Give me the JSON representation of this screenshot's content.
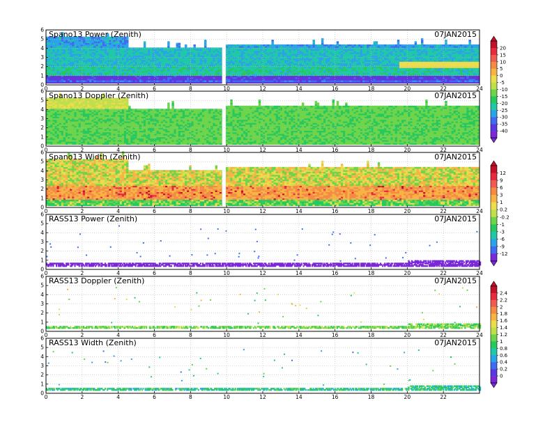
{
  "chart_data": [
    {
      "type": "heatmap",
      "title": "Spano13 Power (Zenith)",
      "date": "07JAN2015",
      "xlim": [
        0,
        24
      ],
      "ylim": [
        0,
        6
      ],
      "xticks": [
        "0",
        "2",
        "4",
        "6",
        "8",
        "10",
        "12",
        "14",
        "16",
        "18",
        "20",
        "22",
        "24"
      ],
      "yticks": [
        "0",
        "1",
        "2",
        "3",
        "4",
        "5",
        "6"
      ],
      "grid": true,
      "colorbar": "power",
      "field": "power",
      "top_profile": [
        [
          0,
          5.2
        ],
        [
          4.5,
          5.2
        ],
        [
          4.5,
          4.0
        ],
        [
          9.8,
          4.0
        ],
        [
          9.8,
          4.3
        ],
        [
          24,
          4.3
        ]
      ],
      "approx_levels": [
        [
          0,
          0.5,
          -32
        ],
        [
          0.5,
          1.0,
          -38
        ],
        [
          1.0,
          2.0,
          -22
        ],
        [
          2.0,
          4.0,
          -24
        ],
        [
          4.0,
          6.0,
          -28
        ]
      ]
    },
    {
      "type": "heatmap",
      "title": "Spano13 Doppler (Zenith)",
      "date": "07JAN2015",
      "xlim": [
        0,
        24
      ],
      "ylim": [
        0,
        6
      ],
      "xticks": [
        "0",
        "2",
        "4",
        "6",
        "8",
        "10",
        "12",
        "14",
        "16",
        "18",
        "20",
        "22",
        "24"
      ],
      "yticks": [
        "0",
        "1",
        "2",
        "3",
        "4",
        "5",
        "6"
      ],
      "grid": true,
      "colorbar": "power",
      "field": "doppler",
      "top_profile": [
        [
          0,
          5.2
        ],
        [
          4.5,
          5.2
        ],
        [
          4.5,
          4.0
        ],
        [
          9.8,
          4.0
        ],
        [
          9.8,
          4.3
        ],
        [
          24,
          4.3
        ]
      ],
      "approx_levels": [
        [
          0,
          6,
          -14
        ]
      ]
    },
    {
      "type": "heatmap",
      "title": "Spano13 Width (Zenith)",
      "date": "07JAN2015",
      "xlim": [
        0,
        24
      ],
      "ylim": [
        0,
        6
      ],
      "xticks": [
        "0",
        "2",
        "4",
        "6",
        "8",
        "10",
        "12",
        "14",
        "16",
        "18",
        "20",
        "22",
        "24"
      ],
      "yticks": [
        "0",
        "1",
        "2",
        "3",
        "4",
        "5",
        "6"
      ],
      "grid": true,
      "colorbar": "width",
      "field": "width",
      "top_profile": [
        [
          0,
          5.2
        ],
        [
          4.5,
          5.2
        ],
        [
          4.5,
          4.0
        ],
        [
          9.8,
          4.0
        ],
        [
          9.8,
          4.3
        ],
        [
          24,
          4.3
        ]
      ],
      "approx_levels": [
        [
          0,
          0.8,
          -1
        ],
        [
          0.8,
          2.3,
          3
        ],
        [
          2.3,
          6,
          0.5
        ]
      ]
    },
    {
      "type": "scatter",
      "title": "RASS13 Power (Zenith)",
      "date": "07JAN2015",
      "xlim": [
        0,
        24
      ],
      "ylim": [
        0,
        6
      ],
      "xticks": [
        "0",
        "2",
        "4",
        "6",
        "8",
        "10",
        "12",
        "14",
        "16",
        "18",
        "20",
        "22",
        "24"
      ],
      "yticks": [
        "0",
        "1",
        "2",
        "3",
        "4",
        "5",
        "6"
      ],
      "grid": true,
      "colorbar": "width",
      "field": "rass_power",
      "band_height": 0.75,
      "approx_level": -12
    },
    {
      "type": "scatter",
      "title": "RASS13 Doppler (Zenith)",
      "date": "07JAN2015",
      "xlim": [
        0,
        24
      ],
      "ylim": [
        0,
        6
      ],
      "xticks": [
        "0",
        "2",
        "4",
        "6",
        "8",
        "10",
        "12",
        "14",
        "16",
        "18",
        "20",
        "22",
        "24"
      ],
      "yticks": [
        "0",
        "1",
        "2",
        "3",
        "4",
        "5",
        "6"
      ],
      "grid": true,
      "colorbar": "small",
      "field": "rass_doppler",
      "band_height": 0.6,
      "approx_level": 1.2
    },
    {
      "type": "scatter",
      "title": "RASS13 Width (Zenith)",
      "date": "07JAN2015",
      "xlim": [
        0,
        24
      ],
      "ylim": [
        0,
        6
      ],
      "xticks": [
        "0",
        "2",
        "4",
        "6",
        "8",
        "10",
        "12",
        "14",
        "16",
        "18",
        "20",
        "22"
      ],
      "yticks": [
        "0",
        "1",
        "2",
        "3",
        "4",
        "5",
        "6"
      ],
      "grid": true,
      "colorbar": "small",
      "field": "rass_width",
      "band_height": 0.6,
      "approx_level": 0.6
    }
  ],
  "colorbars": [
    {
      "id": "power",
      "labels": [
        "20",
        "15",
        "10",
        "5",
        "0",
        "-5",
        "-10",
        "-15",
        "-20",
        "-25",
        "-30",
        "-35",
        "-40"
      ],
      "colors": [
        "#c0102a",
        "#e8283c",
        "#f05a50",
        "#f58a42",
        "#f7b444",
        "#eddc4c",
        "#bfe04a",
        "#6ed44a",
        "#27c85e",
        "#20c8a8",
        "#2aa4e6",
        "#3e6cf0",
        "#5a38e0",
        "#7a28d8"
      ]
    },
    {
      "id": "width",
      "labels": [
        "12",
        "9",
        "6",
        "3",
        "1",
        "0.2",
        "-0.2",
        "-1",
        "-3",
        "-6",
        "-9",
        "-12"
      ],
      "colors": [
        "#c0102a",
        "#e8283c",
        "#f05a50",
        "#f58a42",
        "#f7b444",
        "#eddc4c",
        "#bfe04a",
        "#6ed44a",
        "#27c85e",
        "#20c8a8",
        "#2aa4e6",
        "#3e6cf0",
        "#7a28d8"
      ]
    },
    {
      "id": "small",
      "labels": [
        "2.4",
        "2.2",
        "2",
        "1.8",
        "1.6",
        "1.4",
        "1.2",
        "1",
        "0.8",
        "0.6",
        "0.4",
        "0.2",
        "0"
      ],
      "colors": [
        "#c0102a",
        "#e8283c",
        "#f05a50",
        "#f58a42",
        "#f7b444",
        "#eddc4c",
        "#bfe04a",
        "#6ed44a",
        "#27c85e",
        "#20c8a8",
        "#2aa4e6",
        "#3e6cf0",
        "#5a38e0",
        "#7a28d8"
      ]
    }
  ]
}
